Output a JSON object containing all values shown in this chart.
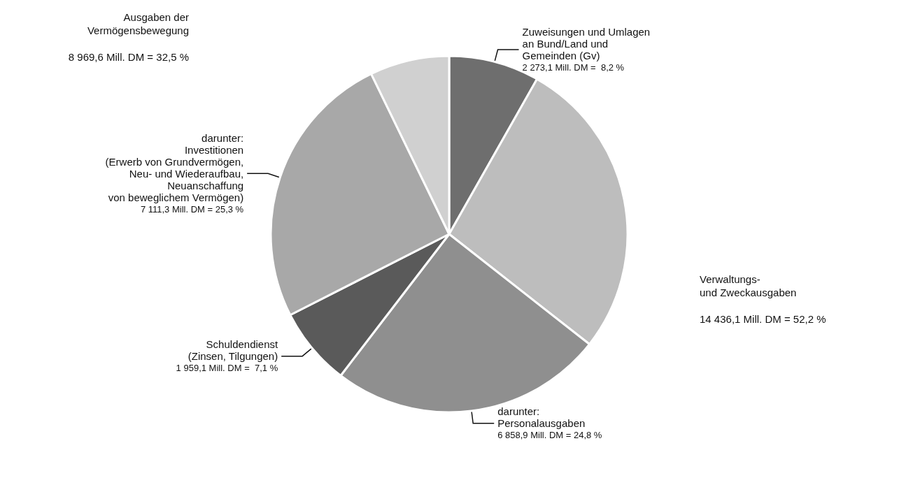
{
  "chart_data": {
    "type": "pie",
    "categories": [
      "Zuweisungen und Umlagen\nan Bund/Land und\nGemeinden (Gv)",
      null,
      "darunter:\nPersonalausgaben",
      "Schuldendienst\n(Zinsen, Tilgungen)",
      "darunter:\nInvestitionen\n(Erwerb von Grundvermögen,\nNeu- und Wiederaufbau,\nNeuanschaffung\nvon beweglichem Vermögen)",
      null
    ],
    "values": [
      8.2,
      27.4,
      24.8,
      7.1,
      25.3,
      7.2
    ],
    "value_labels": [
      "2 273,1 Mill. DM =  8,2 %",
      null,
      "6 858,9 Mill. DM = 24,8 %",
      "1 959,1 Mill. DM =  7,1 %",
      "7 111,3 Mill. DM = 25,3 %",
      null
    ],
    "colors": [
      "#6e6e6e",
      "#bdbdbd",
      "#8f8f8f",
      "#5a5a5a",
      "#a8a8a8",
      "#d0d0d0"
    ],
    "annotations": [
      "Verwaltungs-\nund Zweckausgaben\n\n14 436,1 Mill. DM = 52,2 %",
      "Ausgaben der\nVermögensbewegung\n\n8 969,6 Mill. DM = 32,5 %"
    ]
  }
}
